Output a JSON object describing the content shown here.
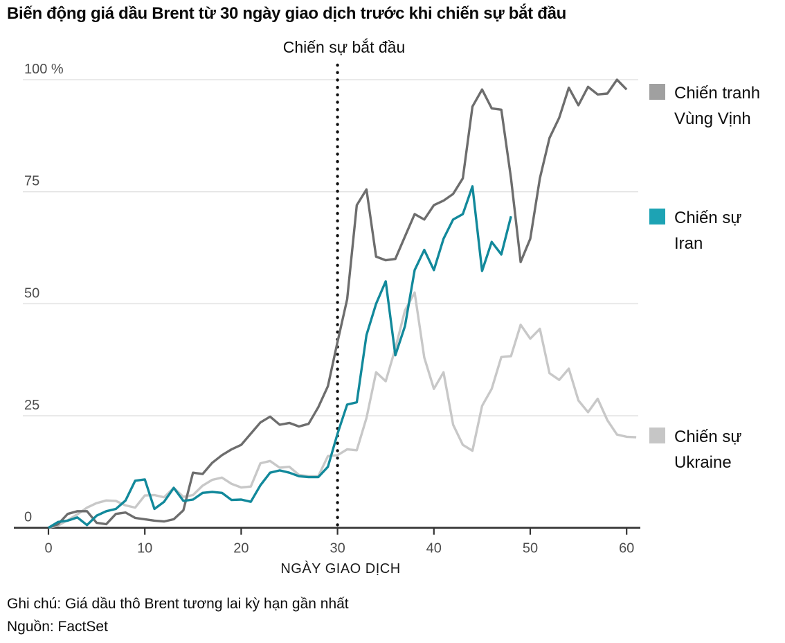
{
  "title": "Biến động giá dầu Brent từ 30 ngày giao dịch trước khi chiến sự bắt đầu",
  "annotation": "Chiến sự bắt đầu",
  "x_axis": {
    "label": "NGÀY GIAO DỊCH",
    "ticks": [
      0,
      10,
      20,
      30,
      40,
      50,
      60
    ]
  },
  "y_axis": {
    "ticks": [
      {
        "label": "100 %",
        "value": 100
      },
      {
        "label": "75",
        "value": 75
      },
      {
        "label": "50",
        "value": 50
      },
      {
        "label": "25",
        "value": 25
      },
      {
        "label": "0",
        "value": 0
      }
    ]
  },
  "legend": [
    {
      "line1": "Chiến tranh",
      "line2": "Vùng Vịnh",
      "swatch_color": "#a0a0a0"
    },
    {
      "line1": "Chiến sự",
      "line2": "Iran",
      "swatch_color": "#1da3b4"
    },
    {
      "line1": "Chiến sự",
      "line2": "Ukraine",
      "swatch_color": "#c6c6c6"
    }
  ],
  "notes": {
    "note": "Ghi chú: Giá dầu thô Brent tương lai kỳ hạn gần nhất",
    "source": "Nguồn: FactSet"
  },
  "colors": {
    "grid": "#e4e4e4",
    "axis": "#333333",
    "tick_text": "#4d4d4d",
    "event_line": "#111111"
  },
  "chart_data": {
    "type": "line",
    "title": "Biến động giá dầu Brent từ 30 ngày giao dịch trước khi chiến sự bắt đầu",
    "xlabel": "NGÀY GIAO DỊCH",
    "ylabel": "%",
    "xlim": [
      0,
      62
    ],
    "ylim": [
      0,
      100
    ],
    "grid": "horizontal",
    "legend_position": "right",
    "event_day": 30,
    "x_unit": "trading day index",
    "series": [
      {
        "name": "Chiến tranh Vùng Vịnh",
        "color": "#6d6d6d",
        "start_day": 0,
        "values": [
          0,
          0.8,
          3.1,
          3.7,
          3.7,
          1.1,
          0.8,
          3.1,
          3.4,
          2.2,
          1.9,
          1.6,
          1.4,
          1.9,
          3.9,
          12.3,
          12.0,
          14.5,
          16.2,
          17.5,
          18.5,
          21.0,
          23.5,
          24.8,
          23.0,
          23.4,
          22.6,
          23.2,
          26.9,
          31.6,
          41.5,
          51.0,
          72.0,
          75.5,
          60.5,
          59.7,
          60.0,
          65.0,
          70.0,
          68.8,
          72.0,
          73.0,
          74.5,
          78.0,
          94.0,
          97.8,
          93.6,
          93.3,
          78.0,
          59.3,
          64.5,
          78.0,
          87.0,
          91.5,
          98.2,
          94.3,
          98.4,
          96.7,
          96.9,
          100.0,
          97.8
        ]
      },
      {
        "name": "Chiến sự Iran",
        "color": "#12899b",
        "start_day": 0,
        "values": [
          0,
          1.3,
          1.6,
          2.3,
          0.6,
          2.7,
          3.7,
          4.2,
          6.1,
          10.5,
          10.8,
          4.2,
          5.8,
          8.9,
          6.0,
          6.3,
          7.8,
          8.0,
          7.8,
          6.2,
          6.3,
          5.8,
          9.5,
          12.3,
          12.8,
          12.3,
          11.5,
          11.3,
          11.3,
          13.6,
          21.0,
          27.5,
          28.0,
          43.0,
          50.0,
          55.0,
          38.5,
          45.0,
          57.5,
          62.0,
          57.5,
          64.5,
          68.8,
          70.0,
          76.2,
          57.3,
          63.8,
          61.0,
          69.5
        ]
      },
      {
        "name": "Chiến sự Ukraine",
        "color": "#c8c8c8",
        "start_day": 0,
        "values": [
          0,
          0.5,
          1.7,
          3.0,
          4.5,
          5.5,
          6.1,
          6.0,
          5.0,
          4.5,
          7.2,
          7.3,
          6.8,
          8.9,
          6.9,
          7.3,
          9.4,
          10.7,
          11.2,
          9.8,
          9.0,
          9.2,
          14.4,
          14.9,
          13.4,
          13.6,
          11.8,
          11.5,
          11.5,
          16.0,
          16.2,
          17.5,
          17.3,
          24.5,
          34.7,
          32.7,
          40.0,
          48.5,
          52.5,
          38.0,
          31.0,
          34.7,
          23.0,
          18.5,
          17.2,
          27.2,
          31.0,
          38.1,
          38.3,
          45.3,
          42.2,
          44.4,
          34.5,
          33.0,
          35.5,
          28.4,
          25.8,
          28.8,
          24.0,
          20.8,
          20.3,
          20.2
        ]
      }
    ]
  }
}
